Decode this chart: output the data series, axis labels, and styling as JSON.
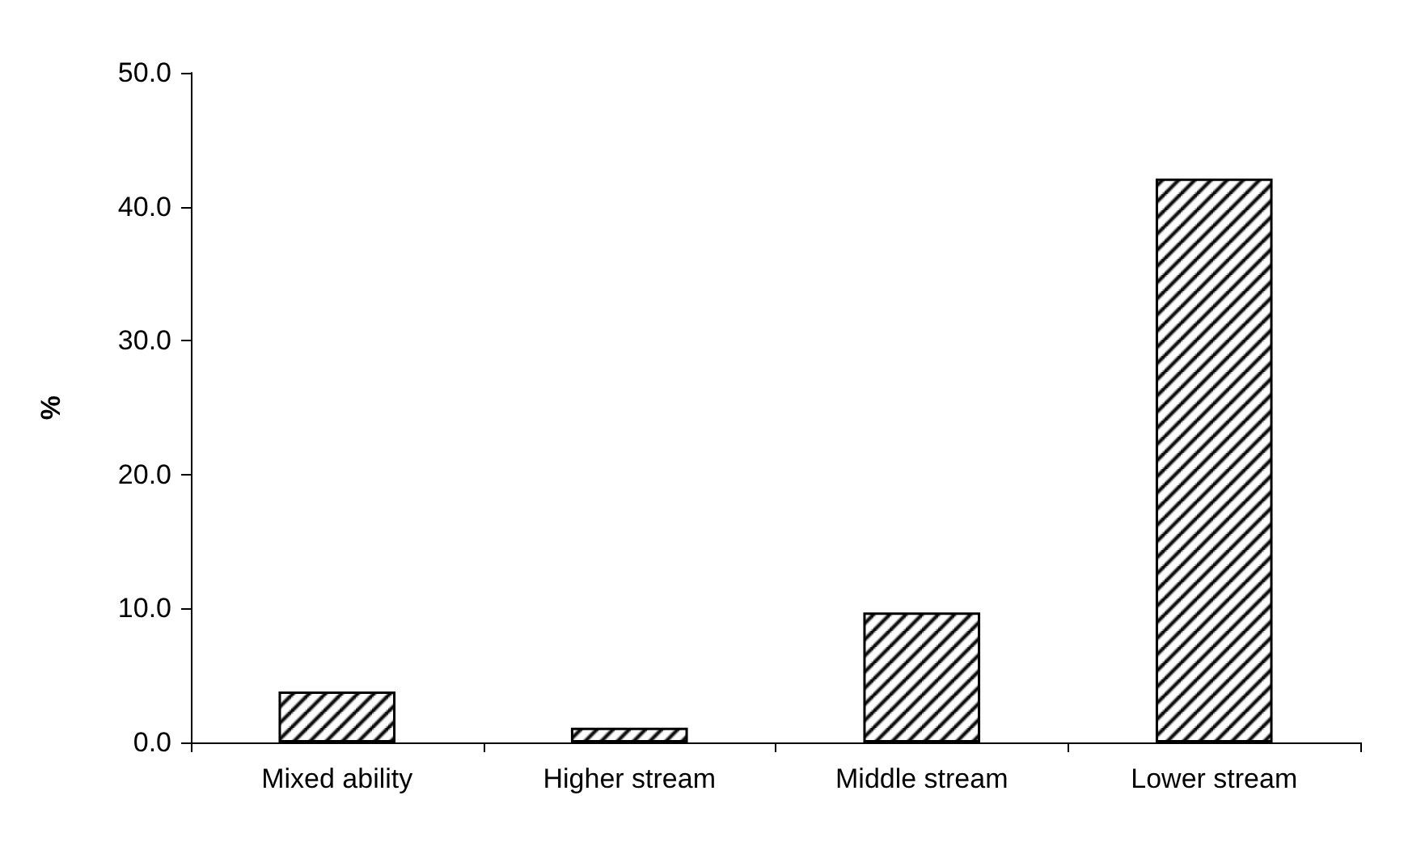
{
  "chart_data": {
    "type": "bar",
    "ylabel": "%",
    "categories": [
      "Mixed ability",
      "Higher stream",
      "Middle stream",
      "Lower stream"
    ],
    "values": [
      3.8,
      1.1,
      9.7,
      42.1
    ],
    "color": "#000000",
    "ylim": [
      0,
      50
    ],
    "yticks": [
      {
        "value": 0,
        "label": "0.0"
      },
      {
        "value": 10,
        "label": "10.0"
      },
      {
        "value": 20,
        "label": "20.0"
      },
      {
        "value": 30,
        "label": "30.0"
      },
      {
        "value": 40,
        "label": "40.0"
      },
      {
        "value": 50,
        "label": "50.0"
      }
    ],
    "grid": false
  }
}
